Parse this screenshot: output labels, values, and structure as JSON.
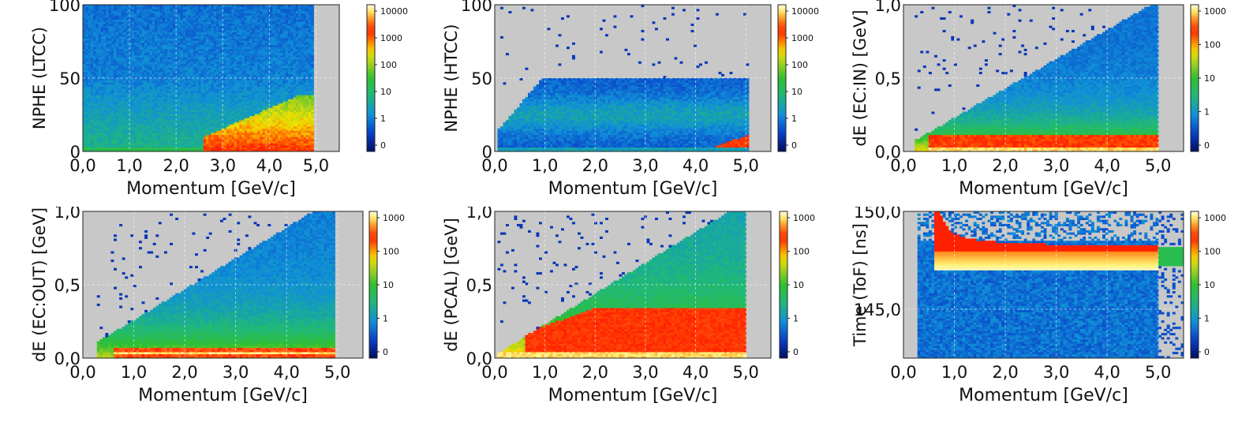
{
  "colors": {
    "background": "#c8c8c8",
    "colormap": [
      "#001060",
      "#0a3cc8",
      "#1090d8",
      "#20b87a",
      "#30c030",
      "#a0d020",
      "#f0e000",
      "#ff8000",
      "#ff2000",
      "#ff9020",
      "#fff070",
      "#ffffe0"
    ]
  },
  "chart_data": [
    {
      "type": "heatmap",
      "title": "",
      "xlabel": "Momentum [GeV/c]",
      "ylabel": "NPHE (LTCC)",
      "xlim": [
        0.0,
        5.5
      ],
      "ylim": [
        0,
        100
      ],
      "xticks": [
        "0,0",
        "1,0",
        "2,0",
        "3,0",
        "4,0",
        "5,0"
      ],
      "yticks": [
        "0",
        "50",
        "100"
      ],
      "colorbar": [
        "10000",
        "1000",
        "100",
        "10",
        "1",
        "0"
      ],
      "grid": true
    },
    {
      "type": "heatmap",
      "title": "",
      "xlabel": "Momentum [GeV/c]",
      "ylabel": "NPHE (HTCC)",
      "xlim": [
        0.0,
        5.5
      ],
      "ylim": [
        0,
        100
      ],
      "xticks": [
        "0,0",
        "1,0",
        "2,0",
        "3,0",
        "4,0",
        "5,0"
      ],
      "yticks": [
        "0",
        "50",
        "100"
      ],
      "colorbar": [
        "10000",
        "1000",
        "100",
        "10",
        "1",
        "0"
      ],
      "grid": true
    },
    {
      "type": "heatmap",
      "title": "",
      "xlabel": "Momentum [GeV/c]",
      "ylabel": "dE (EC:IN) [GeV]",
      "xlim": [
        0.0,
        5.5
      ],
      "ylim": [
        0.0,
        1.0
      ],
      "xticks": [
        "0,0",
        "1,0",
        "2,0",
        "3,0",
        "4,0",
        "5,0"
      ],
      "yticks": [
        "0,0",
        "0,5",
        "1,0"
      ],
      "colorbar": [
        "1000",
        "100",
        "10",
        "1",
        "0"
      ],
      "grid": true
    },
    {
      "type": "heatmap",
      "title": "",
      "xlabel": "Momentum [GeV/c]",
      "ylabel": "dE (EC:OUT) [GeV]",
      "xlim": [
        0.0,
        5.5
      ],
      "ylim": [
        0.0,
        1.0
      ],
      "xticks": [
        "0,0",
        "1,0",
        "2,0",
        "3,0",
        "4,0",
        "5,0"
      ],
      "yticks": [
        "0,0",
        "0,5",
        "1,0"
      ],
      "colorbar": [
        "1000",
        "100",
        "10",
        "1",
        "0"
      ],
      "grid": true
    },
    {
      "type": "heatmap",
      "title": "",
      "xlabel": "Momentum [GeV/c]",
      "ylabel": "dE (PCAL) [GeV]",
      "xlim": [
        0.0,
        5.5
      ],
      "ylim": [
        0.0,
        1.0
      ],
      "xticks": [
        "0,0",
        "1,0",
        "2,0",
        "3,0",
        "4,0",
        "5,0"
      ],
      "yticks": [
        "0,0",
        "0,5",
        "1,0"
      ],
      "colorbar": [
        "1000",
        "100",
        "10",
        "1",
        "0"
      ],
      "grid": true
    },
    {
      "type": "heatmap",
      "title": "",
      "xlabel": "Momentum [GeV/c]",
      "ylabel": "Time (ToF) [ns]",
      "xlim": [
        0.0,
        5.5
      ],
      "ylim": [
        142.5,
        150.0
      ],
      "xticks": [
        "0,0",
        "1,0",
        "2,0",
        "3,0",
        "4,0",
        "5,0"
      ],
      "yticks": [
        "145,0",
        "150,0"
      ],
      "colorbar": [
        "1000",
        "100",
        "10",
        "1",
        "0"
      ],
      "grid": true
    }
  ]
}
